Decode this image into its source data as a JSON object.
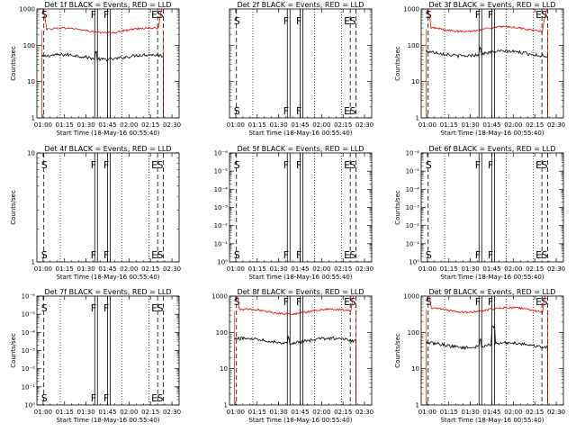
{
  "colors": {
    "events": "#000000",
    "lld": "#e00000",
    "axis": "#000000",
    "background": "#ffffff"
  },
  "chart_data": [
    {
      "type": "line",
      "title": "Det 1f BLACK = Events, RED = LLD",
      "xlabel": "Start Time (18-May-16 00:55:40)",
      "ylabel": "Counts/sec",
      "yscale": "log",
      "ylim": [
        1,
        1000
      ],
      "ytick_labels": [
        "1",
        "10",
        "100",
        "1000"
      ],
      "has_data": true,
      "xlim": [
        "00:55:40",
        "02:35:00"
      ],
      "xtick_labels": [
        "01:00",
        "01:15",
        "01:30",
        "01:45",
        "02:00",
        "02:15",
        "02:30"
      ],
      "markers": [
        {
          "label": "S",
          "time": "01:00:30",
          "style": "dashed"
        },
        {
          "label": "F",
          "time": "01:37:00",
          "style": "solid"
        },
        {
          "label": "F",
          "time": "01:46:00",
          "style": "solid"
        },
        {
          "label": "E",
          "time": "02:20:00",
          "style": "dashed"
        },
        {
          "label": "S",
          "time": "02:24:00",
          "style": "dashed"
        }
      ],
      "dotted_times": [
        "01:12:00",
        "01:55:00",
        "02:14:00"
      ],
      "series": [
        {
          "name": "Events",
          "color": "black",
          "level": 48,
          "start": "00:59:00",
          "end": "02:24:00"
        },
        {
          "name": "LLD",
          "color": "red",
          "level": 260,
          "start": "00:59:00",
          "end": "02:24:00"
        }
      ]
    },
    {
      "type": "line",
      "title": "Det 2f BLACK = Events, RED = LLD",
      "xlabel": "Start Time (18-May-16 00:55:40)",
      "ylabel": "",
      "yscale": "log",
      "ylim": [
        1,
        1000
      ],
      "ytick_labels": [],
      "has_data": false,
      "xlim": [
        "00:55:40",
        "02:35:00"
      ],
      "xtick_labels": [
        "01:00",
        "01:15",
        "01:30",
        "01:45",
        "02:00",
        "02:15",
        "02:30"
      ],
      "markers": [
        {
          "label": "S",
          "time": "01:00:30",
          "style": "dashed"
        },
        {
          "label": "F",
          "time": "01:37:00",
          "style": "solid"
        },
        {
          "label": "F",
          "time": "01:46:00",
          "style": "solid"
        },
        {
          "label": "E",
          "time": "02:20:00",
          "style": "dashed"
        },
        {
          "label": "S",
          "time": "02:24:00",
          "style": "dashed"
        }
      ],
      "dotted_times": [
        "01:12:00",
        "01:55:00",
        "02:14:00"
      ],
      "series": []
    },
    {
      "type": "line",
      "title": "Det 3f BLACK = Events, RED = LLD",
      "xlabel": "Start Time (18-May-16 00:55:40)",
      "ylabel": "Counts/sec",
      "yscale": "log",
      "ylim": [
        1,
        1000
      ],
      "ytick_labels": [
        "1",
        "10",
        "100",
        "1000"
      ],
      "has_data": true,
      "xlim": [
        "00:55:40",
        "02:35:00"
      ],
      "xtick_labels": [
        "01:00",
        "01:15",
        "01:30",
        "01:45",
        "02:00",
        "02:15",
        "02:30"
      ],
      "markers": [
        {
          "label": "S",
          "time": "01:00:30",
          "style": "dashed"
        },
        {
          "label": "F",
          "time": "01:37:00",
          "style": "solid"
        },
        {
          "label": "F",
          "time": "01:46:00",
          "style": "solid"
        },
        {
          "label": "E",
          "time": "02:20:00",
          "style": "dashed"
        },
        {
          "label": "S",
          "time": "02:24:00",
          "style": "dashed"
        }
      ],
      "dotted_times": [
        "01:12:00",
        "01:55:00",
        "02:14:00"
      ],
      "series": [
        {
          "name": "Events",
          "color": "black",
          "level": 60,
          "start": "00:59:00",
          "end": "02:24:00"
        },
        {
          "name": "LLD",
          "color": "red",
          "level": 280,
          "start": "00:59:00",
          "end": "02:24:00"
        }
      ]
    },
    {
      "type": "line",
      "title": "Det 4f BLACK = Events, RED = LLD",
      "xlabel": "Start Time (18-May-16 00:55:40)",
      "ylabel": "Counts/sec",
      "yscale": "log",
      "ylim": [
        1,
        10
      ],
      "ytick_labels": [
        "1",
        "10"
      ],
      "has_data": false,
      "xlim": [
        "00:55:40",
        "02:35:00"
      ],
      "xtick_labels": [
        "01:00",
        "01:15",
        "01:30",
        "01:45",
        "02:00",
        "02:15",
        "02:30"
      ],
      "markers": [
        {
          "label": "S",
          "time": "01:00:30",
          "style": "dashed"
        },
        {
          "label": "F",
          "time": "01:37:00",
          "style": "solid"
        },
        {
          "label": "F",
          "time": "01:46:00",
          "style": "solid"
        },
        {
          "label": "E",
          "time": "02:20:00",
          "style": "dashed"
        },
        {
          "label": "S",
          "time": "02:24:00",
          "style": "dashed"
        }
      ],
      "dotted_times": [
        "01:12:00",
        "01:55:00",
        "02:14:00"
      ],
      "series": []
    },
    {
      "type": "line",
      "title": "Det 5f BLACK = Events, RED = LLD",
      "xlabel": "Start Time (18-May-16 00:55:40)",
      "ylabel": "",
      "yscale": "log",
      "ylim": [
        1,
        1e-06
      ],
      "ytick_labels": [
        "10⁰",
        "10⁻¹",
        "10⁻²",
        "10⁻³",
        "10⁻⁴",
        "10⁻⁵",
        "10⁻⁶"
      ],
      "has_data": false,
      "xlim": [
        "00:55:40",
        "02:35:00"
      ],
      "xtick_labels": [
        "01:00",
        "01:15",
        "01:30",
        "01:45",
        "02:00",
        "02:15",
        "02:30"
      ],
      "markers": [
        {
          "label": "S",
          "time": "01:00:30",
          "style": "dashed"
        },
        {
          "label": "F",
          "time": "01:37:00",
          "style": "solid"
        },
        {
          "label": "F",
          "time": "01:46:00",
          "style": "solid"
        },
        {
          "label": "E",
          "time": "02:20:00",
          "style": "dashed"
        },
        {
          "label": "S",
          "time": "02:24:00",
          "style": "dashed"
        }
      ],
      "dotted_times": [
        "01:12:00",
        "01:55:00",
        "02:14:00"
      ],
      "series": []
    },
    {
      "type": "line",
      "title": "Det 6f BLACK = Events, RED = LLD",
      "xlabel": "Start Time (18-May-16 00:55:40)",
      "ylabel": "Counts/sec",
      "yscale": "log",
      "ylim": [
        1,
        1e-06
      ],
      "ytick_labels": [
        "10⁰",
        "10⁻¹",
        "10⁻²",
        "10⁻³",
        "10⁻⁴",
        "10⁻⁵",
        "10⁻⁶"
      ],
      "has_data": false,
      "xlim": [
        "00:55:40",
        "02:35:00"
      ],
      "xtick_labels": [
        "01:00",
        "01:15",
        "01:30",
        "01:45",
        "02:00",
        "02:15",
        "02:30"
      ],
      "markers": [
        {
          "label": "S",
          "time": "01:00:30",
          "style": "dashed"
        },
        {
          "label": "F",
          "time": "01:37:00",
          "style": "solid"
        },
        {
          "label": "F",
          "time": "01:46:00",
          "style": "solid"
        },
        {
          "label": "E",
          "time": "02:20:00",
          "style": "dashed"
        },
        {
          "label": "S",
          "time": "02:24:00",
          "style": "dashed"
        }
      ],
      "dotted_times": [
        "01:12:00",
        "01:55:00",
        "02:14:00"
      ],
      "series": []
    },
    {
      "type": "line",
      "title": "Det 7f BLACK = Events, RED = LLD",
      "xlabel": "Start Time (18-May-16 00:55:40)",
      "ylabel": "Counts/sec",
      "yscale": "log",
      "ylim": [
        1,
        1e-06
      ],
      "ytick_labels": [
        "10⁰",
        "10⁻¹",
        "10⁻²",
        "10⁻³",
        "10⁻⁴",
        "10⁻⁵",
        "10⁻⁶"
      ],
      "has_data": false,
      "xlim": [
        "00:55:40",
        "02:35:00"
      ],
      "xtick_labels": [
        "01:00",
        "01:15",
        "01:30",
        "01:45",
        "02:00",
        "02:15",
        "02:30"
      ],
      "markers": [
        {
          "label": "S",
          "time": "01:00:30",
          "style": "dashed"
        },
        {
          "label": "F",
          "time": "01:37:00",
          "style": "solid"
        },
        {
          "label": "F",
          "time": "01:46:00",
          "style": "solid"
        },
        {
          "label": "E",
          "time": "02:20:00",
          "style": "dashed"
        },
        {
          "label": "S",
          "time": "02:24:00",
          "style": "dashed"
        }
      ],
      "dotted_times": [
        "01:12:00",
        "01:55:00",
        "02:14:00"
      ],
      "series": []
    },
    {
      "type": "line",
      "title": "Det 8f BLACK = Events, RED = LLD",
      "xlabel": "Start Time (18-May-16 00:55:40)",
      "ylabel": "",
      "yscale": "log",
      "ylim": [
        1,
        1000
      ],
      "ytick_labels": [
        "1",
        "10",
        "100",
        "1000"
      ],
      "has_data": true,
      "xlim": [
        "00:55:40",
        "02:35:00"
      ],
      "xtick_labels": [
        "01:00",
        "01:15",
        "01:30",
        "01:45",
        "02:00",
        "02:15",
        "02:30"
      ],
      "markers": [
        {
          "label": "S",
          "time": "01:00:30",
          "style": "dashed"
        },
        {
          "label": "F",
          "time": "01:37:00",
          "style": "solid"
        },
        {
          "label": "F",
          "time": "01:46:00",
          "style": "solid"
        },
        {
          "label": "E",
          "time": "02:20:00",
          "style": "dashed"
        },
        {
          "label": "S",
          "time": "02:24:00",
          "style": "dashed"
        }
      ],
      "dotted_times": [
        "01:12:00",
        "01:55:00",
        "02:14:00"
      ],
      "series": [
        {
          "name": "Events",
          "color": "black",
          "level": 60,
          "start": "00:59:00",
          "end": "02:24:00"
        },
        {
          "name": "LLD",
          "color": "red",
          "level": 380,
          "start": "00:59:00",
          "end": "02:24:00"
        }
      ]
    },
    {
      "type": "line",
      "title": "Det 9f BLACK = Events, RED = LLD",
      "xlabel": "Start Time (18-May-16 00:55:40)",
      "ylabel": "Counts/sec",
      "yscale": "log",
      "ylim": [
        1,
        1000
      ],
      "ytick_labels": [
        "1",
        "10",
        "100",
        "1000"
      ],
      "has_data": true,
      "xlim": [
        "00:55:40",
        "02:35:00"
      ],
      "xtick_labels": [
        "01:00",
        "01:15",
        "01:30",
        "01:45",
        "02:00",
        "02:15",
        "02:30"
      ],
      "markers": [
        {
          "label": "S",
          "time": "01:00:30",
          "style": "dashed"
        },
        {
          "label": "F",
          "time": "01:37:00",
          "style": "solid"
        },
        {
          "label": "F",
          "time": "01:46:00",
          "style": "solid"
        },
        {
          "label": "E",
          "time": "02:20:00",
          "style": "dashed"
        },
        {
          "label": "S",
          "time": "02:24:00",
          "style": "dashed"
        }
      ],
      "dotted_times": [
        "01:12:00",
        "01:55:00",
        "02:14:00"
      ],
      "series": [
        {
          "name": "Events",
          "color": "black",
          "level": 45,
          "start": "00:59:00",
          "end": "02:24:00"
        },
        {
          "name": "LLD",
          "color": "red",
          "level": 420,
          "start": "00:59:00",
          "end": "02:24:00"
        }
      ]
    }
  ]
}
